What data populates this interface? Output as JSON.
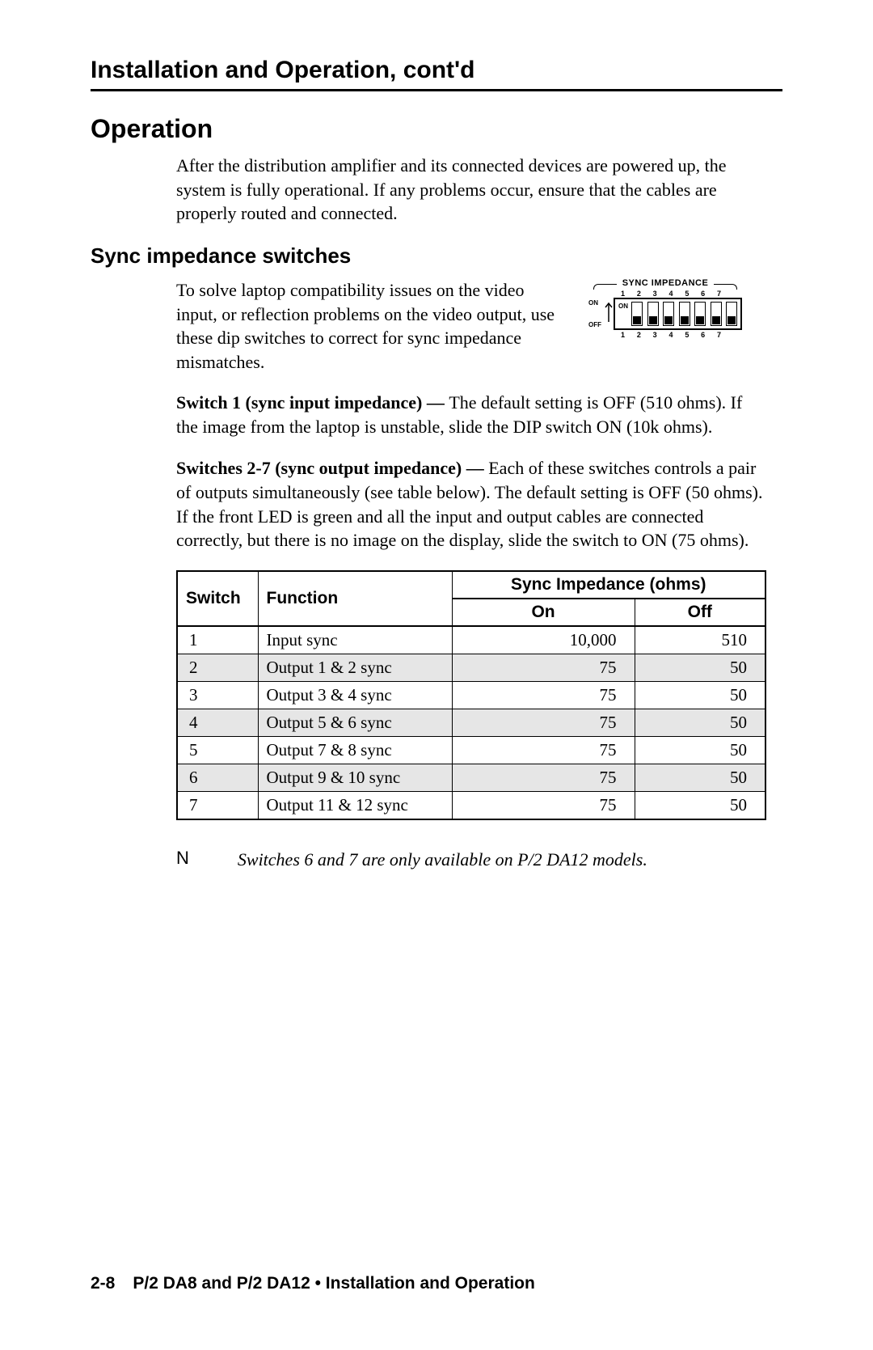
{
  "chapter_title": "Installation and Operation, cont'd",
  "section_title": "Operation",
  "intro_paragraph": "After the distribution amplifier and its connected devices are powered up, the system is fully operational.  If any problems occur, ensure that the cables are properly routed and connected.",
  "subsection_title": "Sync impedance switches",
  "sync_intro": "To solve laptop compatibility issues on the video input, or reflection problems on the video output, use these dip switches to correct for sync impedance mismatches.",
  "dip": {
    "title": "SYNC IMPEDANCE",
    "numbers": [
      "1",
      "2",
      "3",
      "4",
      "5",
      "6",
      "7"
    ],
    "on_label": "ON",
    "off_label": "OFF",
    "inner_on": "ON"
  },
  "switch1_bold": "Switch 1 (sync input impedance) — ",
  "switch1_text": "The default setting is OFF (510 ohms).  If the image from the laptop is unstable, slide the DIP switch ON (10k ohms).",
  "switch27_bold": "Switches 2-7 (sync output impedance) — ",
  "switch27_text": "Each of these switches controls a pair of outputs simultaneously (see table below). The default setting is OFF (50 ohms).  If the front LED is green and all the input and output cables are connected correctly, but there is no image on the display, slide the switch to ON (75 ohms).",
  "table": {
    "headers": {
      "switch": "Switch",
      "function": "Function",
      "sync": "Sync Impedance (ohms)",
      "on": "On",
      "off": "Off"
    },
    "rows": [
      {
        "sw": "1",
        "fn": "Input sync",
        "on": "10,000",
        "off": "510",
        "shade": false
      },
      {
        "sw": "2",
        "fn": "Output 1 & 2 sync",
        "on": "75",
        "off": "50",
        "shade": true
      },
      {
        "sw": "3",
        "fn": "Output 3 & 4 sync",
        "on": "75",
        "off": "50",
        "shade": false
      },
      {
        "sw": "4",
        "fn": "Output 5 & 6 sync",
        "on": "75",
        "off": "50",
        "shade": true
      },
      {
        "sw": "5",
        "fn": "Output 7 & 8 sync",
        "on": "75",
        "off": "50",
        "shade": false
      },
      {
        "sw": "6",
        "fn": "Output 9 & 10 sync",
        "on": "75",
        "off": "50",
        "shade": true
      },
      {
        "sw": "7",
        "fn": "Output 11 & 12 sync",
        "on": "75",
        "off": "50",
        "shade": false
      }
    ]
  },
  "note": {
    "mark": "N",
    "text": "Switches 6 and 7 are only available on P/2 DA12 models."
  },
  "footer": {
    "page": "2-8",
    "text": "P/2 DA8 and P/2 DA12 • Installation and Operation"
  },
  "colors": {
    "text": "#000000",
    "background": "#ffffff",
    "rule": "#000000",
    "shade": "#e6e6e6"
  },
  "fonts": {
    "body_family": "Palatino",
    "heading_family": "sans-serif",
    "body_size_pt": 16,
    "chapter_size_pt": 22,
    "section_size_pt": 24,
    "subsection_size_pt": 19,
    "footer_size_pt": 15
  }
}
